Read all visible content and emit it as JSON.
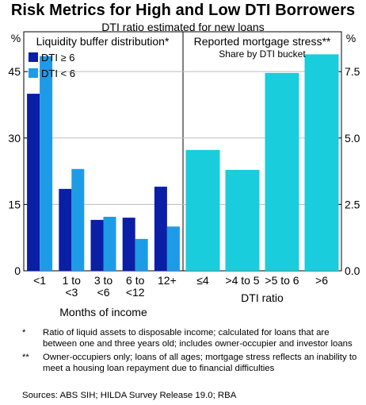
{
  "title": "Risk Metrics for High and Low DTI Borrowers",
  "subtitle": "DTI ratio estimated for new loans",
  "colors": {
    "dark": "#0a1ea6",
    "mid": "#1e9be6",
    "cyan": "#19cddc"
  },
  "chart_data": [
    {
      "type": "bar",
      "title": "Liquidity buffer distribution*",
      "unit": "%",
      "xlabel": "Months of income",
      "categories": [
        "<1",
        "1 to\n<3",
        "3 to\n<6",
        "6 to\n<12",
        "12+"
      ],
      "series": [
        {
          "name": "DTI ≥ 6",
          "color": "#0a1ea6",
          "values": [
            40,
            18.5,
            11.5,
            12,
            19
          ]
        },
        {
          "name": "DTI < 6",
          "color": "#1e9be6",
          "values": [
            48.5,
            23,
            12.2,
            7.2,
            10
          ]
        }
      ],
      "ylim": [
        0,
        54
      ],
      "yticks": [
        "0",
        "15",
        "30",
        "45"
      ],
      "legend": "top-left"
    },
    {
      "type": "bar",
      "title": "Reported mortgage stress**",
      "subtitle": "Share by DTI bucket",
      "unit": "%",
      "xlabel": "DTI ratio",
      "categories": [
        "≤4",
        ">4 to 5",
        ">5 to 6",
        ">6"
      ],
      "series": [
        {
          "color": "#19cddc",
          "values": [
            4.55,
            3.8,
            7.45,
            8.15
          ]
        }
      ],
      "ylim": [
        0,
        9
      ],
      "yticks": [
        "0.0",
        "2.5",
        "5.0",
        "7.5"
      ]
    }
  ],
  "notes": [
    {
      "mark": "*",
      "text": "Ratio of liquid assets to disposable income; calculated for loans that are between one and three years old; includes owner-occupier and investor loans"
    },
    {
      "mark": "**",
      "text": "Owner-occupiers only; loans of all ages; mortgage stress reflects an inability to meet a housing loan repayment due to financial difficulties"
    }
  ],
  "sources": "Sources: ABS SIH; HILDA Survey Release 19.0; RBA"
}
